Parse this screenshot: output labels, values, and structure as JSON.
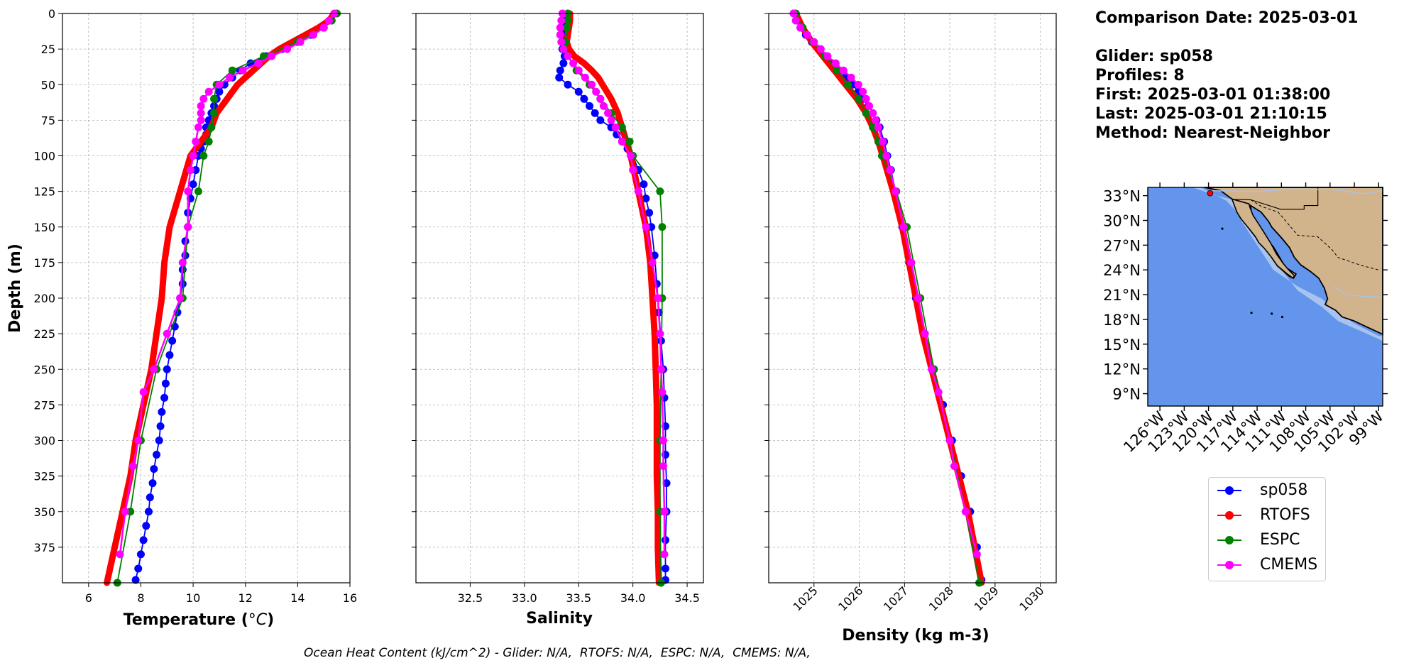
{
  "chart_data": [
    {
      "type": "line",
      "panel": "temperature",
      "xlabel": "Temperature (°C)",
      "ylabel": "Depth (m)",
      "xlim": [
        5,
        16
      ],
      "ylim": [
        400,
        0
      ],
      "y_inverted": true,
      "xticks": [
        "6",
        "8",
        "10",
        "12",
        "14",
        "16"
      ],
      "yticks": [
        "0",
        "25",
        "50",
        "75",
        "100",
        "125",
        "150",
        "175",
        "200",
        "225",
        "250",
        "275",
        "300",
        "325",
        "350",
        "375"
      ],
      "grid": true,
      "series": [
        {
          "name": "sp058",
          "color": "#0000ff",
          "depth": [
            5,
            10,
            15,
            20,
            25,
            30,
            35,
            40,
            45,
            50,
            55,
            60,
            65,
            70,
            75,
            80,
            85,
            90,
            95,
            100,
            110,
            120,
            130,
            140,
            150,
            160,
            170,
            180,
            190,
            200,
            210,
            220,
            230,
            240,
            250,
            260,
            270,
            280,
            290,
            300,
            310,
            320,
            330,
            340,
            350,
            360,
            370,
            380,
            390,
            398
          ],
          "values": [
            15.3,
            15.0,
            14.5,
            14.0,
            13.4,
            12.8,
            12.2,
            11.8,
            11.5,
            11.2,
            11.0,
            10.9,
            10.8,
            10.7,
            10.6,
            10.5,
            10.5,
            10.4,
            10.3,
            10.2,
            10.1,
            10.0,
            9.9,
            9.8,
            9.8,
            9.7,
            9.7,
            9.6,
            9.6,
            9.5,
            9.4,
            9.3,
            9.2,
            9.1,
            9.0,
            8.95,
            8.9,
            8.8,
            8.75,
            8.7,
            8.6,
            8.5,
            8.45,
            8.35,
            8.3,
            8.2,
            8.1,
            8.0,
            7.9,
            7.8
          ]
        },
        {
          "name": "RTOFS",
          "color": "#ff0000",
          "depth": [
            0,
            5,
            10,
            15,
            20,
            25,
            30,
            35,
            40,
            45,
            50,
            55,
            60,
            65,
            70,
            75,
            80,
            85,
            90,
            95,
            100,
            125,
            150,
            175,
            200,
            225,
            250,
            275,
            300,
            325,
            350,
            375,
            400
          ],
          "values": [
            15.4,
            15.2,
            14.8,
            14.3,
            13.8,
            13.3,
            12.9,
            12.6,
            12.3,
            12.0,
            11.7,
            11.5,
            11.3,
            11.1,
            10.9,
            10.8,
            10.7,
            10.5,
            10.3,
            10.1,
            9.9,
            9.5,
            9.1,
            8.9,
            8.8,
            8.6,
            8.4,
            8.1,
            7.8,
            7.6,
            7.3,
            7.0,
            6.7
          ]
        },
        {
          "name": "ESPC",
          "color": "#008000",
          "depth": [
            0,
            5,
            10,
            20,
            30,
            40,
            50,
            60,
            70,
            80,
            90,
            100,
            125,
            150,
            200,
            250,
            300,
            350,
            400
          ],
          "values": [
            15.5,
            15.3,
            15.0,
            14.0,
            12.7,
            11.5,
            10.9,
            10.8,
            10.8,
            10.7,
            10.6,
            10.4,
            10.2,
            9.8,
            9.6,
            8.6,
            8.0,
            7.6,
            7.1
          ]
        },
        {
          "name": "CMEMS",
          "color": "#ff00ff",
          "depth": [
            0,
            5,
            10,
            15,
            20,
            25,
            30,
            35,
            40,
            45,
            50,
            55,
            60,
            65,
            70,
            75,
            80,
            90,
            100,
            110,
            125,
            150,
            175,
            200,
            225,
            250,
            266,
            300,
            318,
            350,
            380
          ],
          "values": [
            15.4,
            15.2,
            15.0,
            14.6,
            14.1,
            13.6,
            13.0,
            12.5,
            11.9,
            11.4,
            11.0,
            10.6,
            10.4,
            10.3,
            10.3,
            10.3,
            10.2,
            10.1,
            10.0,
            9.9,
            9.8,
            9.8,
            9.6,
            9.5,
            9.0,
            8.5,
            8.1,
            7.9,
            7.7,
            7.4,
            7.2
          ]
        }
      ]
    },
    {
      "type": "line",
      "panel": "salinity",
      "xlabel": "Salinity",
      "ylim": [
        400,
        0
      ],
      "xlim": [
        32.0,
        34.65
      ],
      "xticks": [
        "32.5",
        "33.0",
        "33.5",
        "34.0",
        "34.5"
      ],
      "grid": true,
      "series": [
        {
          "name": "sp058",
          "color": "#0000ff",
          "depth": [
            5,
            10,
            15,
            20,
            25,
            30,
            35,
            40,
            45,
            50,
            55,
            60,
            65,
            70,
            75,
            80,
            85,
            90,
            95,
            100,
            110,
            120,
            130,
            140,
            150,
            170,
            190,
            210,
            230,
            250,
            270,
            290,
            310,
            330,
            350,
            370,
            390,
            398
          ],
          "values": [
            33.38,
            33.37,
            33.36,
            33.35,
            33.35,
            33.37,
            33.36,
            33.33,
            33.32,
            33.4,
            33.5,
            33.55,
            33.6,
            33.65,
            33.7,
            33.8,
            33.85,
            33.9,
            33.95,
            34.0,
            34.05,
            34.1,
            34.12,
            34.15,
            34.17,
            34.2,
            34.22,
            34.24,
            34.26,
            34.28,
            34.29,
            34.3,
            34.3,
            34.31,
            34.31,
            34.3,
            34.3,
            34.3
          ]
        },
        {
          "name": "RTOFS",
          "color": "#ff0000",
          "depth": [
            0,
            5,
            10,
            15,
            20,
            25,
            30,
            35,
            40,
            45,
            50,
            55,
            60,
            65,
            70,
            75,
            80,
            85,
            90,
            95,
            100,
            125,
            150,
            175,
            200,
            225,
            250,
            275,
            300,
            325,
            350,
            375,
            400
          ],
          "values": [
            33.42,
            33.42,
            33.41,
            33.4,
            33.39,
            33.41,
            33.46,
            33.55,
            33.62,
            33.68,
            33.72,
            33.76,
            33.8,
            33.83,
            33.86,
            33.88,
            33.9,
            33.92,
            33.94,
            33.96,
            33.98,
            34.05,
            34.12,
            34.16,
            34.18,
            34.2,
            34.21,
            34.22,
            34.22,
            34.22,
            34.23,
            34.23,
            34.24
          ]
        },
        {
          "name": "ESPC",
          "color": "#008000",
          "depth": [
            0,
            5,
            10,
            20,
            30,
            40,
            50,
            60,
            70,
            80,
            90,
            100,
            125,
            150,
            200,
            250,
            300,
            350,
            400
          ],
          "values": [
            33.4,
            33.4,
            33.39,
            33.38,
            33.4,
            33.48,
            33.6,
            33.7,
            33.8,
            33.9,
            33.97,
            34.0,
            34.25,
            34.27,
            34.27,
            34.26,
            34.25,
            34.25,
            34.26
          ]
        },
        {
          "name": "CMEMS",
          "color": "#ff00ff",
          "depth": [
            0,
            5,
            10,
            15,
            20,
            25,
            30,
            35,
            40,
            45,
            50,
            55,
            60,
            65,
            70,
            75,
            80,
            90,
            100,
            110,
            125,
            150,
            175,
            200,
            225,
            250,
            266,
            300,
            318,
            350,
            380
          ],
          "values": [
            33.35,
            33.34,
            33.33,
            33.33,
            33.34,
            33.36,
            33.4,
            33.45,
            33.5,
            33.56,
            33.62,
            33.66,
            33.7,
            33.73,
            33.77,
            33.8,
            33.84,
            33.9,
            33.98,
            34.0,
            34.05,
            34.12,
            34.18,
            34.23,
            34.25,
            34.26,
            34.27,
            34.28,
            34.28,
            34.29,
            34.29
          ]
        }
      ]
    },
    {
      "type": "line",
      "panel": "density",
      "xlabel": "Density (kg m-3)",
      "ylim": [
        400,
        0
      ],
      "xlim": [
        1024.0,
        1030.35
      ],
      "xticks": [
        "1025",
        "1026",
        "1027",
        "1028",
        "1029",
        "1030"
      ],
      "grid": true,
      "series": [
        {
          "name": "sp058",
          "color": "#0000ff",
          "depth": [
            0,
            5,
            10,
            15,
            20,
            25,
            30,
            35,
            40,
            45,
            50,
            55,
            60,
            65,
            70,
            75,
            80,
            90,
            100,
            110,
            125,
            150,
            175,
            200,
            225,
            250,
            275,
            300,
            325,
            350,
            375,
            398
          ],
          "values": [
            1024.55,
            1024.6,
            1024.7,
            1024.82,
            1024.95,
            1025.1,
            1025.25,
            1025.4,
            1025.55,
            1025.7,
            1025.85,
            1025.98,
            1026.1,
            1026.2,
            1026.3,
            1026.38,
            1026.45,
            1026.55,
            1026.62,
            1026.7,
            1026.8,
            1026.95,
            1027.1,
            1027.25,
            1027.45,
            1027.65,
            1027.85,
            1028.05,
            1028.25,
            1028.45,
            1028.6,
            1028.7
          ]
        },
        {
          "name": "RTOFS",
          "color": "#ff0000",
          "depth": [
            0,
            10,
            20,
            30,
            40,
            50,
            60,
            70,
            80,
            90,
            100,
            125,
            150,
            175,
            200,
            225,
            250,
            275,
            300,
            325,
            350,
            375,
            400
          ],
          "values": [
            1024.6,
            1024.75,
            1024.95,
            1025.2,
            1025.45,
            1025.7,
            1025.95,
            1026.15,
            1026.3,
            1026.42,
            1026.52,
            1026.75,
            1026.95,
            1027.1,
            1027.25,
            1027.4,
            1027.6,
            1027.8,
            1028.0,
            1028.2,
            1028.4,
            1028.55,
            1028.7
          ]
        },
        {
          "name": "ESPC",
          "color": "#008000",
          "depth": [
            0,
            10,
            20,
            30,
            40,
            50,
            60,
            70,
            80,
            90,
            100,
            125,
            150,
            200,
            250,
            300,
            350,
            400
          ],
          "values": [
            1024.6,
            1024.75,
            1024.98,
            1025.25,
            1025.5,
            1025.75,
            1025.98,
            1026.15,
            1026.3,
            1026.42,
            1026.5,
            1026.82,
            1027.05,
            1027.35,
            1027.65,
            1028.0,
            1028.35,
            1028.65
          ]
        },
        {
          "name": "CMEMS",
          "color": "#ff00ff",
          "depth": [
            0,
            5,
            10,
            15,
            20,
            25,
            30,
            35,
            40,
            45,
            50,
            55,
            60,
            65,
            70,
            75,
            80,
            90,
            100,
            110,
            125,
            150,
            175,
            200,
            225,
            250,
            266,
            300,
            318,
            350,
            380
          ],
          "values": [
            1024.55,
            1024.6,
            1024.7,
            1024.85,
            1025.0,
            1025.15,
            1025.3,
            1025.48,
            1025.65,
            1025.82,
            1025.98,
            1026.08,
            1026.15,
            1026.22,
            1026.3,
            1026.36,
            1026.42,
            1026.52,
            1026.6,
            1026.68,
            1026.8,
            1026.98,
            1027.15,
            1027.3,
            1027.45,
            1027.6,
            1027.75,
            1028.0,
            1028.1,
            1028.35,
            1028.6
          ]
        }
      ]
    }
  ],
  "figure": {
    "ylabel": "Depth (m)",
    "temp_xlabel_prefix": "Temperature (",
    "temp_xlabel_unit": "°C",
    "temp_xlabel_suffix": ")",
    "salinity_xlabel": "Salinity",
    "density_xlabel": "Density (kg m-3)"
  },
  "info": {
    "comparison_date": "Comparison Date: 2025-03-01",
    "glider": "Glider: sp058",
    "profiles": "Profiles: 8",
    "first": "First: 2025-03-01 01:38:00",
    "last": "Last: 2025-03-01 21:10:15",
    "method": "Method: Nearest-Neighbor"
  },
  "map": {
    "lat_labels": [
      "33°N",
      "30°N",
      "27°N",
      "24°N",
      "21°N",
      "18°N",
      "15°N",
      "12°N",
      "9°N"
    ],
    "lon_labels": [
      "126°W",
      "123°W",
      "120°W",
      "117°W",
      "114°W",
      "111°W",
      "108°W",
      "105°W",
      "102°W",
      "99°W"
    ],
    "ocean_color": "#6495ed",
    "land_color": "#d2b48c",
    "shelf_color": "#a8c4ee"
  },
  "legend": [
    {
      "label": "sp058",
      "color": "#0000ff"
    },
    {
      "label": "RTOFS",
      "color": "#ff0000"
    },
    {
      "label": "ESPC",
      "color": "#008000"
    },
    {
      "label": "CMEMS",
      "color": "#ff00ff"
    }
  ],
  "footer": "Ocean Heat Content (kJ/cm^2) - Glider: N/A,  RTOFS: N/A,  ESPC: N/A,  CMEMS: N/A,"
}
